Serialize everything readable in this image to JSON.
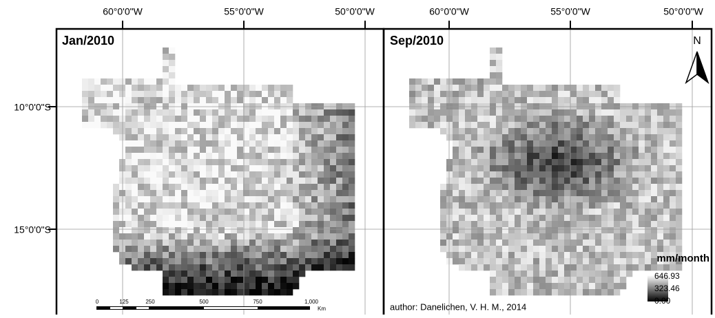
{
  "panels": [
    {
      "title": "Jan/2010",
      "lon_labels": [
        "60°0'0\"W",
        "55°0'0\"W",
        "50°0'0\"W"
      ]
    },
    {
      "title": "Sep/2010",
      "lon_labels": [
        "60°0'0\"W",
        "55°0'0\"W",
        "50°0'0\"W"
      ]
    }
  ],
  "lat_labels": [
    "10°0'0\"S",
    "15°0'0\"S"
  ],
  "scale_bar": {
    "labels": [
      "0",
      "125",
      "250",
      "500",
      "750",
      "1,000"
    ],
    "unit": "Km"
  },
  "north_arrow": "N",
  "legend": {
    "title": "mm/month",
    "labels": [
      "646.93",
      "323.46",
      "0.00"
    ]
  },
  "credit": "author: Danelichen, V. H. M., 2014"
}
